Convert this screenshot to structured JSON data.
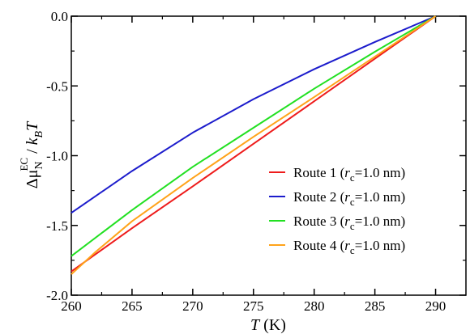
{
  "chart_data": {
    "type": "line",
    "xlabel": {
      "var": "T",
      "unit": " (K)"
    },
    "ylabel": {
      "prefix": "Δμ",
      "sub": "N",
      "sup": "EC",
      "slash": " / ",
      "k": "k",
      "ksub": "B",
      "T": "T"
    },
    "xlim": [
      260,
      292.5
    ],
    "ylim": [
      -2.0,
      0.0
    ],
    "xticks": [
      260,
      265,
      270,
      275,
      280,
      285,
      290
    ],
    "yticks": [
      "-2.0",
      "-1.5",
      "-1.0",
      "-0.5",
      "0.0"
    ],
    "legend_position": "lower-right",
    "series": [
      {
        "name": "Route 1",
        "rc_label": "c",
        "rc_value": "=1.0 nm)",
        "color": "#ee1c1c",
        "x": [
          260,
          265,
          270,
          275,
          280,
          285,
          290
        ],
        "y": [
          -1.83,
          -1.52,
          -1.22,
          -0.915,
          -0.61,
          -0.305,
          0.0
        ]
      },
      {
        "name": "Route 2",
        "rc_label": "c",
        "rc_value": "=1.0 nm)",
        "color": "#1c1ccc",
        "x": [
          260,
          265,
          270,
          275,
          280,
          285,
          290
        ],
        "y": [
          -1.41,
          -1.11,
          -0.835,
          -0.595,
          -0.38,
          -0.185,
          0.0
        ]
      },
      {
        "name": "Route 3",
        "rc_label": "c",
        "rc_value": "=1.0 nm)",
        "color": "#22e022",
        "x": [
          260,
          265,
          270,
          275,
          280,
          285,
          290
        ],
        "y": [
          -1.72,
          -1.39,
          -1.08,
          -0.8,
          -0.52,
          -0.255,
          0.0
        ]
      },
      {
        "name": "Route 4",
        "rc_label": "c",
        "rc_value": "=1.0 nm)",
        "color": "#ffa31a",
        "x": [
          260,
          262,
          265,
          270,
          275,
          280,
          285,
          290
        ],
        "y": [
          -1.85,
          -1.69,
          -1.47,
          -1.16,
          -0.865,
          -0.58,
          -0.29,
          0.0
        ]
      }
    ]
  }
}
